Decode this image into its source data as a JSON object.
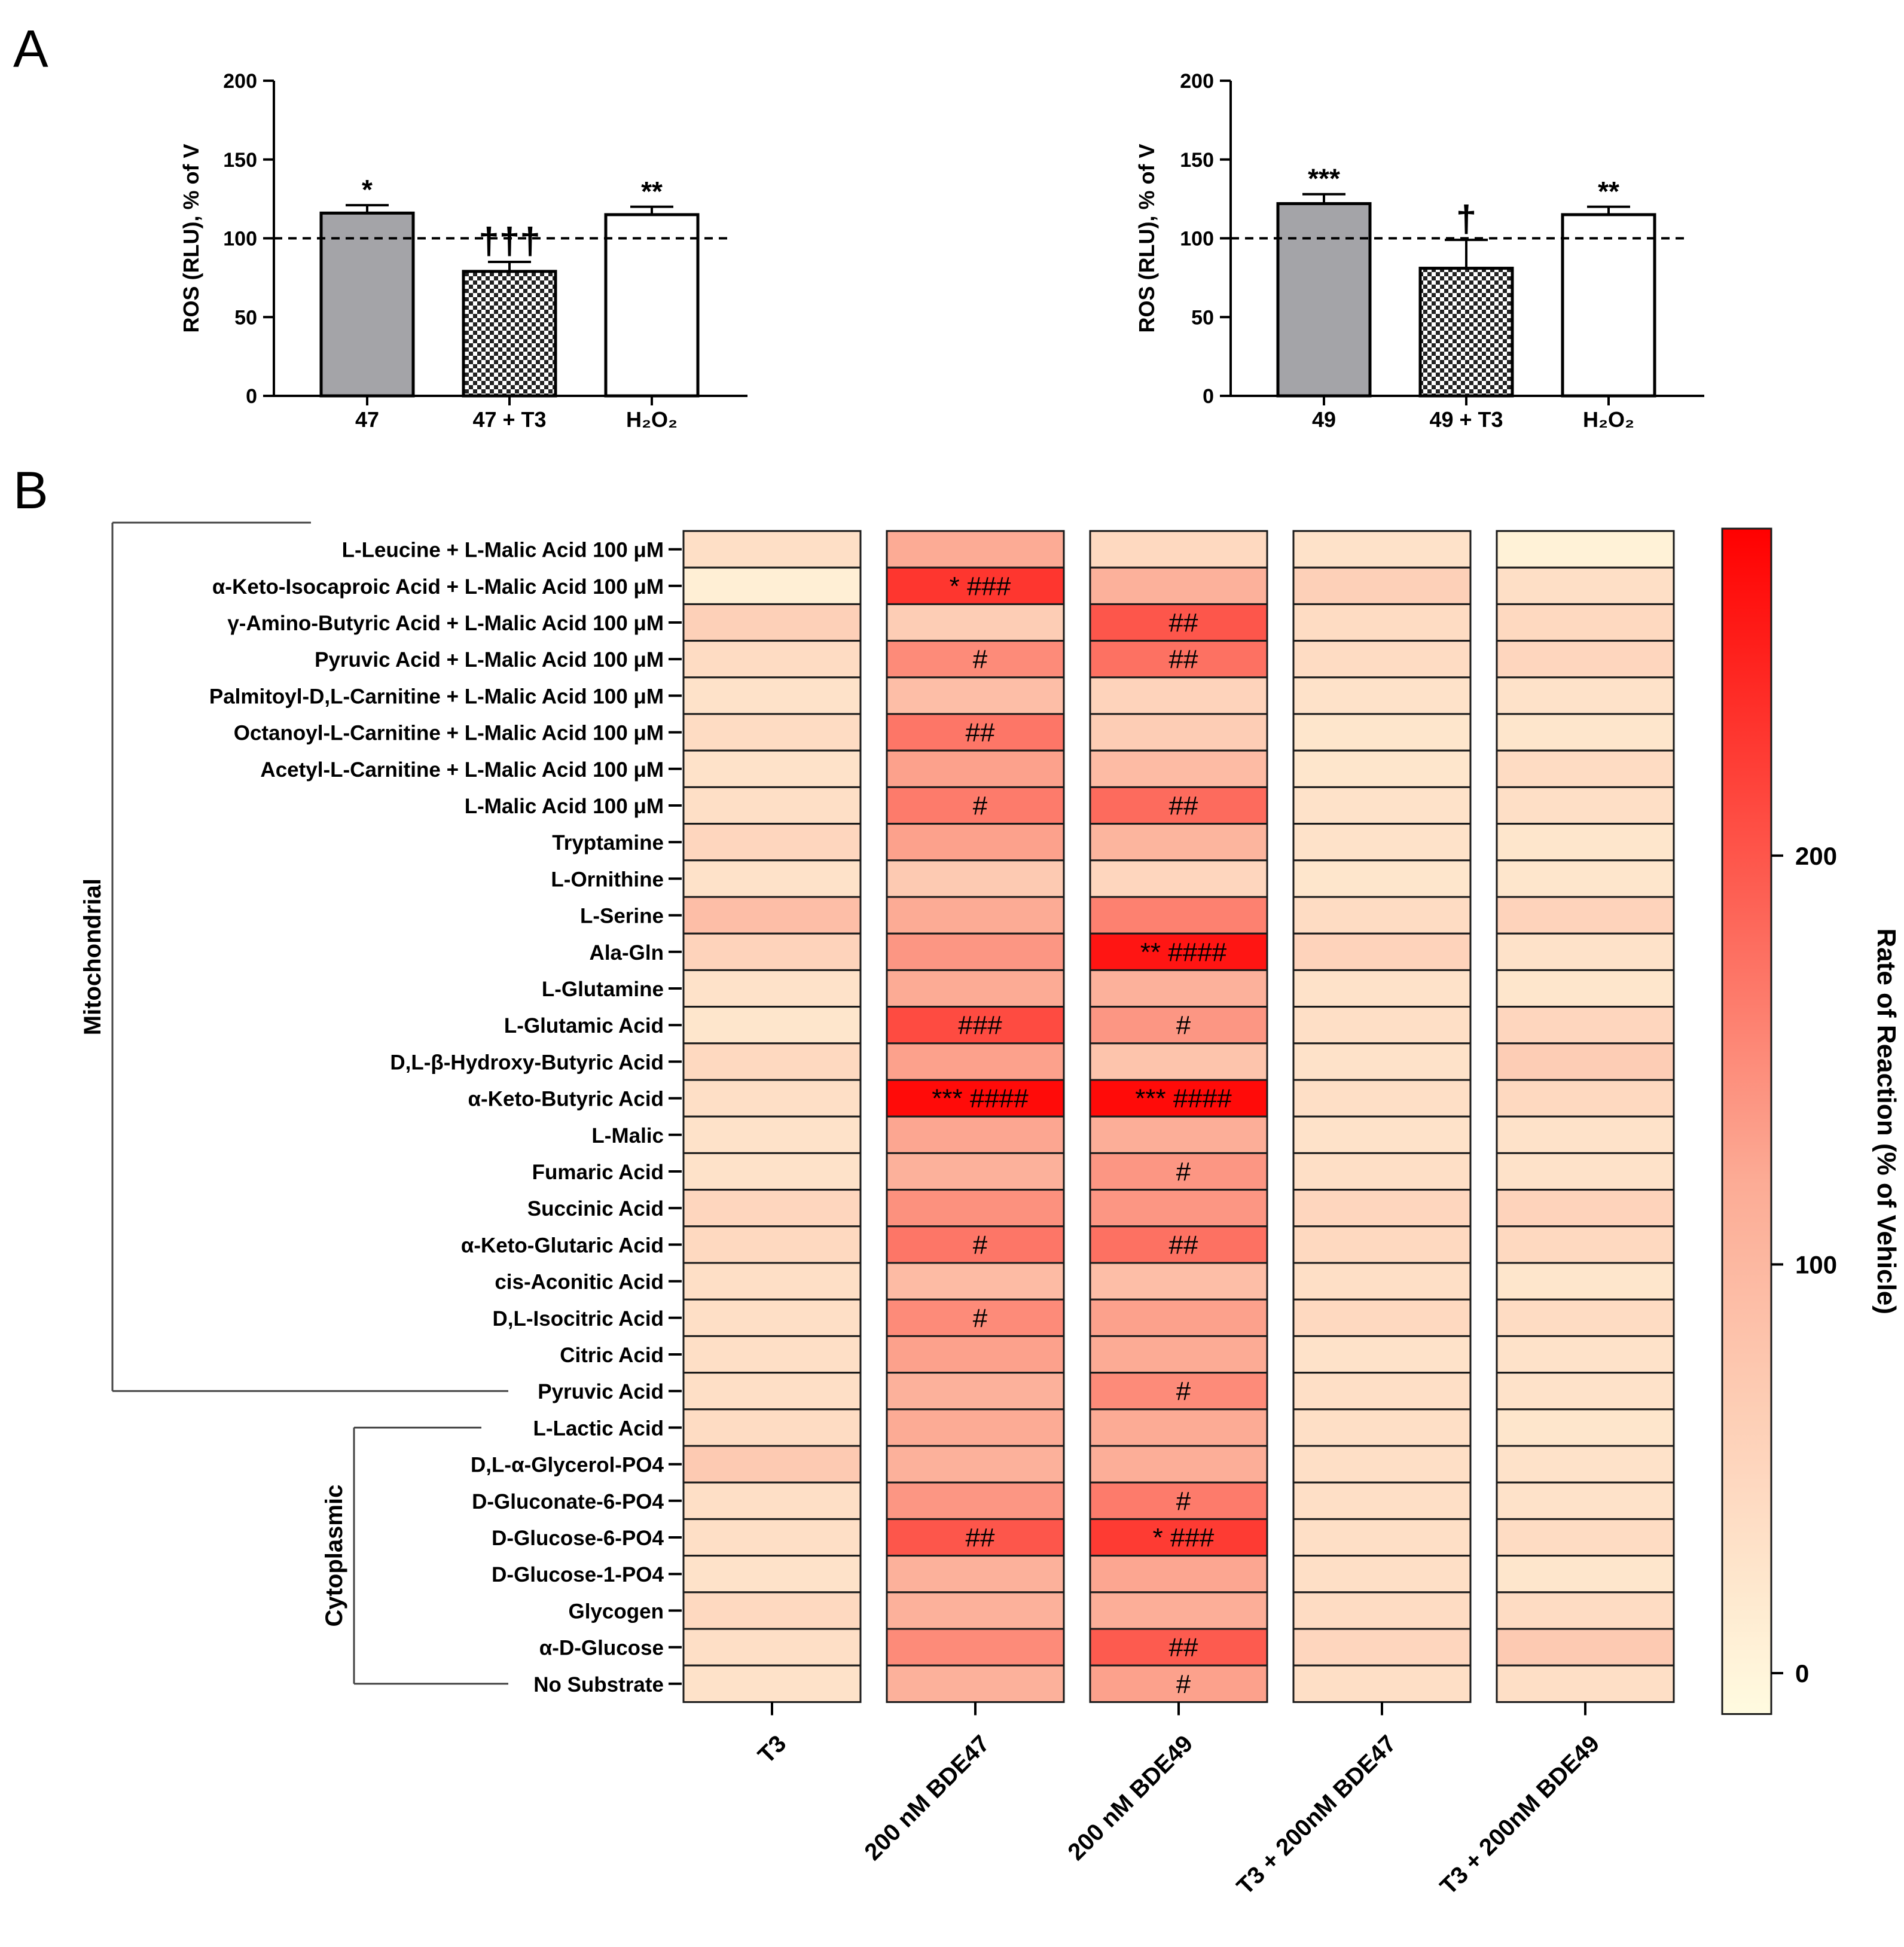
{
  "panels": {
    "a_label": "A",
    "b_label": "B"
  },
  "chart_data": [
    {
      "type": "bar",
      "title": "",
      "ylabel": "ROS (RLU), % of V",
      "xlabel": "",
      "ylim": [
        0,
        200
      ],
      "yticks": [
        0,
        50,
        100,
        150,
        200
      ],
      "reference_line": 100,
      "categories": [
        "47",
        "47 + T3",
        "H₂O₂"
      ],
      "values": [
        116,
        79,
        115
      ],
      "errors": [
        5,
        6,
        5
      ],
      "fills": [
        "gray",
        "checker",
        "white"
      ],
      "significance": [
        "*",
        "†††",
        "**"
      ]
    },
    {
      "type": "bar",
      "title": "",
      "ylabel": "ROS (RLU), % of V",
      "xlabel": "",
      "ylim": [
        0,
        200
      ],
      "yticks": [
        0,
        50,
        100,
        150,
        200
      ],
      "reference_line": 100,
      "categories": [
        "49",
        "49 + T3",
        "H₂O₂"
      ],
      "values": [
        122,
        81,
        115
      ],
      "errors": [
        6,
        18,
        5
      ],
      "fills": [
        "gray",
        "checker",
        "white"
      ],
      "significance": [
        "***",
        "†",
        "**"
      ]
    },
    {
      "type": "heatmap",
      "colorbar_label": "Rate of Reaction (% of Vehicle)",
      "colorbar_range": [
        -10,
        280
      ],
      "colorbar_ticks": [
        0,
        100,
        200
      ],
      "color_low": "#fffbe0",
      "color_mid": "#fcab95",
      "color_high": "#ff0000",
      "groups": [
        {
          "label": "Mitochondrial",
          "from_row": 0,
          "to_row": 23
        },
        {
          "label": "Cytoplasmic",
          "from_row": 24,
          "to_row": 31
        }
      ],
      "columns": [
        "T3",
        "200 nM BDE47",
        "200 nM BDE49",
        "T3 + 200nM BDE47",
        "T3 + 200nM BDE49"
      ],
      "rows": [
        {
          "label": "L-Leucine + L-Malic Acid 100 μM",
          "values": [
            35,
            120,
            45,
            30,
            5
          ],
          "marks": [
            "",
            "",
            "",
            "",
            ""
          ]
        },
        {
          "label": "α-Keto-Isocaproic Acid + L-Malic Acid 100 μM",
          "values": [
            10,
            230,
            110,
            60,
            35
          ],
          "marks": [
            "",
            "*  ###",
            "",
            "",
            ""
          ]
        },
        {
          "label": "γ-Amino-Butyric Acid + L-Malic Acid 100 μM",
          "values": [
            60,
            65,
            200,
            40,
            45
          ],
          "marks": [
            "",
            "",
            "##",
            "",
            ""
          ]
        },
        {
          "label": "Pyruvic Acid + L-Malic Acid 100 μM",
          "values": [
            40,
            150,
            175,
            40,
            50
          ],
          "marks": [
            "",
            "#",
            "##",
            "",
            ""
          ]
        },
        {
          "label": "Palmitoyl-D,L-Carnitine + L-Malic Acid 100 μM",
          "values": [
            30,
            90,
            55,
            30,
            30
          ],
          "marks": [
            "",
            "",
            "",
            "",
            ""
          ]
        },
        {
          "label": "Octanoyl-L-Carnitine + L-Malic Acid 100 μM",
          "values": [
            40,
            170,
            65,
            25,
            25
          ],
          "marks": [
            "",
            "##",
            "",
            "",
            ""
          ]
        },
        {
          "label": "Acetyl-L-Carnitine + L-Malic Acid 100 μM",
          "values": [
            30,
            130,
            95,
            25,
            40
          ],
          "marks": [
            "",
            "",
            "",
            "",
            ""
          ]
        },
        {
          "label": "L-Malic Acid 100 μM",
          "values": [
            35,
            165,
            180,
            30,
            35
          ],
          "marks": [
            "",
            "#",
            "##",
            "",
            ""
          ]
        },
        {
          "label": "Tryptamine",
          "values": [
            50,
            130,
            105,
            30,
            25
          ],
          "marks": [
            "",
            "",
            "",
            "",
            ""
          ]
        },
        {
          "label": "L-Ornithine",
          "values": [
            30,
            70,
            50,
            25,
            25
          ],
          "marks": [
            "",
            "",
            "",
            "",
            ""
          ]
        },
        {
          "label": "L-Serine",
          "values": [
            90,
            120,
            160,
            40,
            55
          ],
          "marks": [
            "",
            "",
            "",
            "",
            ""
          ]
        },
        {
          "label": "Ala-Gln",
          "values": [
            55,
            140,
            260,
            55,
            30
          ],
          "marks": [
            "",
            "",
            "**  ####",
            "",
            ""
          ]
        },
        {
          "label": "L-Glutamine",
          "values": [
            30,
            120,
            110,
            30,
            25
          ],
          "marks": [
            "",
            "",
            "",
            "",
            ""
          ]
        },
        {
          "label": "L-Glutamic Acid",
          "values": [
            25,
            210,
            140,
            35,
            50
          ],
          "marks": [
            "",
            "###",
            "#",
            "",
            ""
          ]
        },
        {
          "label": "D,L-β-Hydroxy-Butyric Acid",
          "values": [
            45,
            130,
            80,
            30,
            65
          ],
          "marks": [
            "",
            "",
            "",
            "",
            ""
          ]
        },
        {
          "label": "α-Keto-Butyric Acid",
          "values": [
            35,
            270,
            270,
            35,
            45
          ],
          "marks": [
            "",
            "***  ####",
            "***  ####",
            "",
            ""
          ]
        },
        {
          "label": "L-Malic",
          "values": [
            30,
            125,
            115,
            30,
            30
          ],
          "marks": [
            "",
            "",
            "",
            "",
            ""
          ]
        },
        {
          "label": "Fumaric Acid",
          "values": [
            30,
            110,
            140,
            35,
            30
          ],
          "marks": [
            "",
            "",
            "#",
            "",
            ""
          ]
        },
        {
          "label": "Succinic Acid",
          "values": [
            50,
            145,
            140,
            50,
            55
          ],
          "marks": [
            "",
            "",
            "",
            "",
            ""
          ]
        },
        {
          "label": "α-Keto-Glutaric Acid",
          "values": [
            45,
            170,
            175,
            45,
            45
          ],
          "marks": [
            "",
            "#",
            "##",
            "",
            ""
          ]
        },
        {
          "label": "cis-Aconitic Acid",
          "values": [
            35,
            95,
            90,
            35,
            25
          ],
          "marks": [
            "",
            "",
            "",
            "",
            ""
          ]
        },
        {
          "label": "D,L-Isocitric Acid",
          "values": [
            35,
            150,
            130,
            45,
            40
          ],
          "marks": [
            "",
            "#",
            "",
            "",
            ""
          ]
        },
        {
          "label": "Citric Acid",
          "values": [
            35,
            130,
            120,
            30,
            30
          ],
          "marks": [
            "",
            "",
            "",
            "",
            ""
          ]
        },
        {
          "label": "Pyruvic Acid",
          "values": [
            35,
            110,
            150,
            35,
            30
          ],
          "marks": [
            "",
            "",
            "#",
            "",
            ""
          ]
        },
        {
          "label": "L-Lactic Acid",
          "values": [
            40,
            120,
            120,
            35,
            25
          ],
          "marks": [
            "",
            "",
            "",
            "",
            ""
          ]
        },
        {
          "label": "D,L-α-Glycerol-PO4",
          "values": [
            70,
            110,
            115,
            35,
            30
          ],
          "marks": [
            "",
            "",
            "",
            "",
            ""
          ]
        },
        {
          "label": "D-Gluconate-6-PO4",
          "values": [
            35,
            140,
            165,
            35,
            30
          ],
          "marks": [
            "",
            "",
            "#",
            "",
            ""
          ]
        },
        {
          "label": "D-Glucose-6-PO4",
          "values": [
            35,
            200,
            225,
            35,
            40
          ],
          "marks": [
            "",
            "##",
            "*  ###",
            "",
            ""
          ]
        },
        {
          "label": "D-Glucose-1-PO4",
          "values": [
            30,
            110,
            125,
            35,
            25
          ],
          "marks": [
            "",
            "",
            "",
            "",
            ""
          ]
        },
        {
          "label": "Glycogen",
          "values": [
            45,
            110,
            115,
            40,
            40
          ],
          "marks": [
            "",
            "",
            "",
            "",
            ""
          ]
        },
        {
          "label": "α-D-Glucose",
          "values": [
            35,
            150,
            195,
            50,
            70
          ],
          "marks": [
            "",
            "",
            "##",
            "",
            ""
          ]
        },
        {
          "label": "No Substrate",
          "values": [
            30,
            110,
            130,
            35,
            35
          ],
          "marks": [
            "",
            "",
            "#",
            "",
            ""
          ]
        }
      ]
    }
  ]
}
